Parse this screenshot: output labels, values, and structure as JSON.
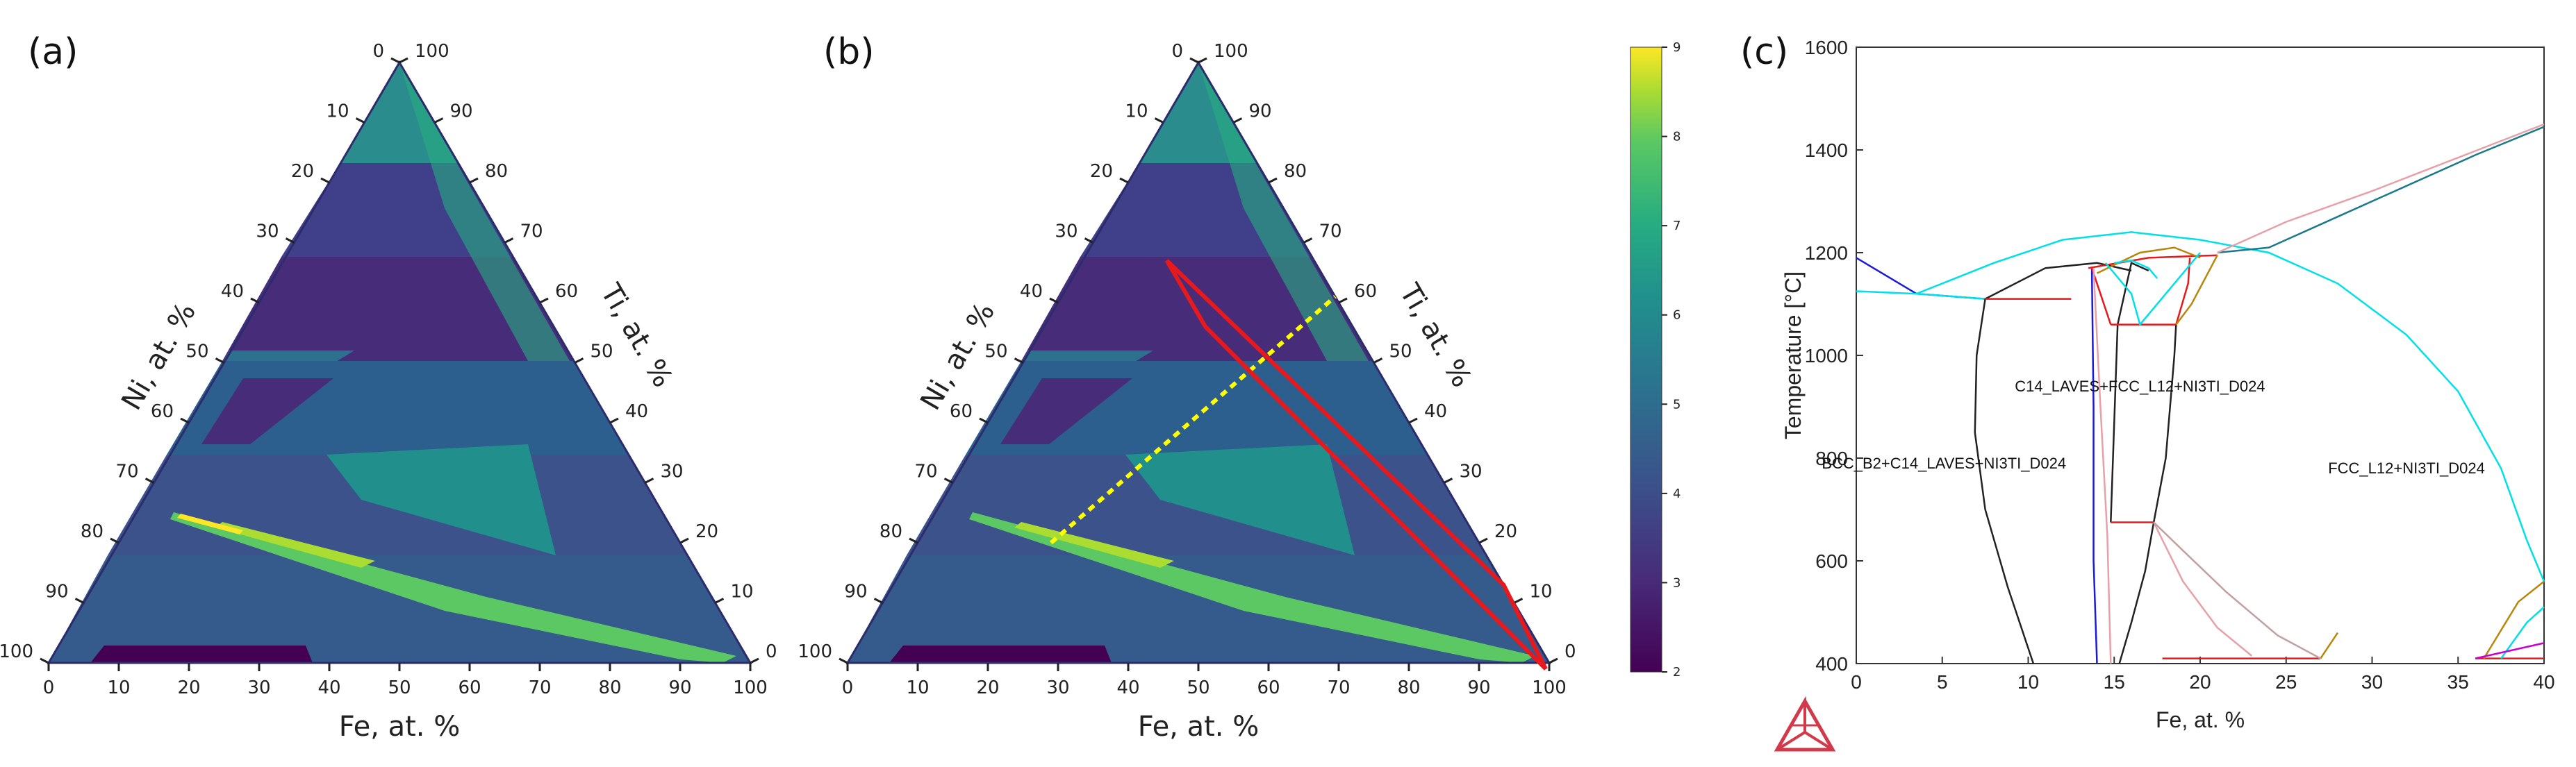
{
  "chart_data": [
    {
      "type": "heatmap",
      "panel_label": "(a)",
      "chart_kind": "ternary",
      "left_axis": {
        "label": "Ni, at. %",
        "ticks": [
          "0",
          "10",
          "20",
          "30",
          "40",
          "50",
          "60",
          "70",
          "80",
          "90",
          "100"
        ]
      },
      "right_axis": {
        "label": "Ti, at. %",
        "ticks": [
          "100",
          "90",
          "80",
          "70",
          "60",
          "50",
          "40",
          "30",
          "20",
          "10",
          "0"
        ]
      },
      "bottom_axis": {
        "label": "Fe, at. %",
        "ticks": [
          "0",
          "10",
          "20",
          "30",
          "40",
          "50",
          "60",
          "70",
          "80",
          "90",
          "100"
        ]
      },
      "value_range": [
        2,
        9
      ],
      "colormap": "viridis"
    },
    {
      "type": "heatmap",
      "panel_label": "(b)",
      "chart_kind": "ternary",
      "left_axis": {
        "label": "Ni, at. %",
        "ticks": [
          "0",
          "10",
          "20",
          "30",
          "40",
          "50",
          "60",
          "70",
          "80",
          "90",
          "100"
        ]
      },
      "right_axis": {
        "label": "Ti, at. %",
        "ticks": [
          "100",
          "90",
          "80",
          "70",
          "60",
          "50",
          "40",
          "30",
          "20",
          "10",
          "0"
        ]
      },
      "bottom_axis": {
        "label": "Fe, at. %",
        "ticks": [
          "0",
          "10",
          "20",
          "30",
          "40",
          "50",
          "60",
          "70",
          "80",
          "90",
          "100"
        ]
      },
      "value_range": [
        2,
        9
      ],
      "colormap": "viridis",
      "colorbar": {
        "ticks": [
          "9",
          "8",
          "7",
          "6",
          "5",
          "4",
          "3",
          "2"
        ]
      },
      "overlays": [
        {
          "kind": "dashed line",
          "color": "#ffff00",
          "points_fe_ni": [
            [
              19,
              61
            ],
            [
              39,
              0
            ]
          ]
        },
        {
          "kind": "polygon",
          "color": "#e8191c",
          "points_fe_ni": [
            [
              12,
              21
            ],
            [
              23,
              21
            ],
            [
              100,
              1
            ],
            [
              87,
              0
            ]
          ]
        }
      ]
    },
    {
      "type": "line",
      "panel_label": "(c)",
      "chart_kind": "phase diagram",
      "xlabel": "Fe, at. %",
      "ylabel": "Temperature [°C]",
      "xlim": [
        0,
        40
      ],
      "ylim": [
        400,
        1600
      ],
      "x_ticks": [
        "0",
        "5",
        "10",
        "15",
        "20",
        "25",
        "30",
        "35",
        "40"
      ],
      "y_ticks": [
        "400",
        "600",
        "800",
        "1000",
        "1200",
        "1400",
        "1600"
      ],
      "region_labels": [
        {
          "text": "C14_LAVES+FCC_L12+NI3TI_D024",
          "x": 16.5,
          "y": 930
        },
        {
          "text": "BCC_B2+C14_LAVES+NI3TI_D024",
          "x": 5.1,
          "y": 780
        },
        {
          "text": "FCC_L12+NI3TI_D024",
          "x": 32,
          "y": 770
        }
      ],
      "series": [
        {
          "color": "#1a1adc",
          "values": [
            [
              0,
              1190
            ],
            [
              3.5,
              1120
            ],
            [
              7.5,
              1110
            ]
          ]
        },
        {
          "color": "#00e0e8",
          "values": [
            [
              0,
              1125
            ],
            [
              3.5,
              1120
            ],
            [
              7.5,
              1110
            ]
          ]
        },
        {
          "color": "#00e0e8",
          "values": [
            [
              3.5,
              1120
            ],
            [
              8,
              1180
            ],
            [
              12,
              1225
            ],
            [
              16,
              1240
            ],
            [
              20,
              1225
            ],
            [
              24,
              1200
            ],
            [
              28,
              1140
            ],
            [
              32,
              1040
            ],
            [
              35,
              930
            ],
            [
              37.5,
              780
            ],
            [
              39,
              640
            ],
            [
              40,
              560
            ]
          ]
        },
        {
          "color": "#222222",
          "values": [
            [
              7.5,
              1110
            ],
            [
              7,
              1000
            ],
            [
              6.9,
              850
            ],
            [
              7.5,
              700
            ],
            [
              8.8,
              550
            ],
            [
              10.3,
              400
            ]
          ]
        },
        {
          "color": "#222222",
          "values": [
            [
              7.5,
              1110
            ],
            [
              11,
              1170
            ],
            [
              14,
              1180
            ],
            [
              16,
              1165
            ]
          ]
        },
        {
          "color": "#222222",
          "values": [
            [
              14.8,
              675
            ],
            [
              15.2,
              1060
            ],
            [
              16,
              1180
            ],
            [
              17,
              1165
            ]
          ]
        },
        {
          "color": "#222222",
          "values": [
            [
              17.3,
              675
            ],
            [
              18,
              800
            ],
            [
              18.5,
              1000
            ],
            [
              18.6,
              1060
            ]
          ]
        },
        {
          "color": "#222222",
          "values": [
            [
              17.3,
              675
            ],
            [
              16.8,
              580
            ],
            [
              16,
              480
            ],
            [
              15.3,
              400
            ]
          ]
        },
        {
          "color": "#1a1adc",
          "values": [
            [
              13.7,
              1170
            ],
            [
              13.8,
              900
            ],
            [
              13.8,
              600
            ],
            [
              14,
              400
            ]
          ]
        },
        {
          "color": "#e8191c",
          "values": [
            [
              7.5,
              1110
            ],
            [
              12.5,
              1110
            ]
          ]
        },
        {
          "color": "#e8191c",
          "values": [
            [
              14.8,
              1060
            ],
            [
              18.6,
              1060
            ]
          ]
        },
        {
          "color": "#e8191c",
          "values": [
            [
              14.8,
              675
            ],
            [
              17.3,
              675
            ]
          ]
        },
        {
          "color": "#e8191c",
          "values": [
            [
              13.5,
              1170
            ],
            [
              17,
              1190
            ],
            [
              21,
              1195
            ]
          ]
        },
        {
          "color": "#e8191c",
          "values": [
            [
              14.8,
              1060
            ],
            [
              14.2,
              1120
            ],
            [
              13.7,
              1170
            ]
          ]
        },
        {
          "color": "#e8191c",
          "values": [
            [
              18.6,
              1060
            ],
            [
              19.3,
              1140
            ],
            [
              19.4,
              1190
            ]
          ]
        },
        {
          "color": "#e8191c",
          "values": [
            [
              17.8,
              410
            ],
            [
              22.5,
              410
            ],
            [
              27,
              410
            ]
          ]
        },
        {
          "color": "#e8191c",
          "values": [
            [
              36,
              410
            ],
            [
              40,
              410
            ]
          ]
        },
        {
          "color": "#b8860b",
          "values": [
            [
              14,
              1160
            ],
            [
              16.5,
              1200
            ],
            [
              18.5,
              1210
            ],
            [
              20,
              1190
            ]
          ]
        },
        {
          "color": "#b8860b",
          "values": [
            [
              21,
              1195
            ],
            [
              19.5,
              1100
            ],
            [
              18.6,
              1060
            ]
          ]
        },
        {
          "color": "#b8860b",
          "values": [
            [
              27,
              410
            ],
            [
              28,
              460
            ]
          ]
        },
        {
          "color": "#b8860b",
          "values": [
            [
              36.5,
              410
            ],
            [
              38.5,
              520
            ],
            [
              40,
              560
            ]
          ]
        },
        {
          "color": "#00e0e8",
          "values": [
            [
              14.5,
              1180
            ],
            [
              16,
              1120
            ],
            [
              16.5,
              1060
            ],
            [
              18,
              1120
            ],
            [
              20,
              1200
            ]
          ]
        },
        {
          "color": "#00e0e8",
          "values": [
            [
              37.5,
              410
            ],
            [
              39,
              480
            ],
            [
              40,
              510
            ]
          ]
        },
        {
          "color": "#1a7a8a",
          "values": [
            [
              21,
              1200
            ],
            [
              24,
              1210
            ],
            [
              28,
              1270
            ],
            [
              32,
              1330
            ],
            [
              36,
              1390
            ],
            [
              40,
              1445
            ]
          ]
        },
        {
          "color": "#00e0e8",
          "values": [
            [
              15,
              1180
            ],
            [
              16,
              1185
            ],
            [
              17,
              1170
            ],
            [
              17.5,
              1150
            ]
          ]
        },
        {
          "color": "#e8a0a8",
          "values": [
            [
              21,
              1200
            ],
            [
              25,
              1260
            ],
            [
              30,
              1320
            ],
            [
              35,
              1385
            ],
            [
              40,
              1450
            ]
          ]
        },
        {
          "color": "#e8a0a8",
          "values": [
            [
              13.8,
              1170
            ],
            [
              14.2,
              900
            ],
            [
              14.6,
              650
            ],
            [
              14.8,
              400
            ]
          ]
        },
        {
          "color": "#e8a0a8",
          "values": [
            [
              17.3,
              675
            ],
            [
              19,
              560
            ],
            [
              21,
              470
            ],
            [
              23,
              415
            ]
          ]
        },
        {
          "color": "#c0a0a0",
          "values": [
            [
              17.3,
              675
            ],
            [
              19,
              620
            ],
            [
              21.5,
              540
            ],
            [
              24.5,
              455
            ],
            [
              27,
              410
            ]
          ]
        },
        {
          "color": "#cc00cc",
          "values": [
            [
              36,
              410
            ],
            [
              38,
              425
            ],
            [
              40,
              440
            ]
          ]
        }
      ]
    }
  ]
}
